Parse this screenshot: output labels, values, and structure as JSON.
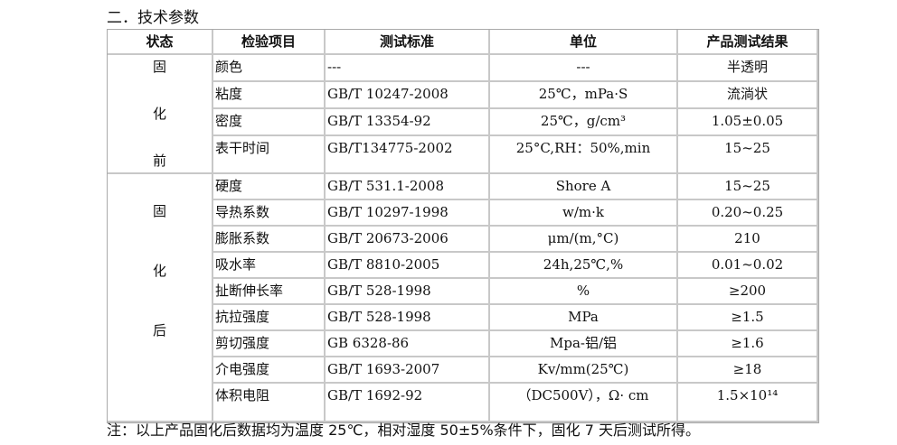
{
  "title": "二．技术参数",
  "headers": [
    "状态",
    "检验项目",
    "测试标准",
    "单位",
    "产品测试结果"
  ],
  "groups": [
    {
      "state": [
        "固",
        "化",
        "前"
      ],
      "rows": [
        {
          "item": "颜色",
          "standard": "---",
          "unit": "---",
          "result": "半透明"
        },
        {
          "item": "粘度",
          "standard": "GB/T 10247-2008",
          "unit": "25℃，mPa·S",
          "result": "流淌状"
        },
        {
          "item": "密度",
          "standard": "GB/T 13354-92",
          "unit": "25℃，g/cm³",
          "result": "1.05±0.05"
        },
        {
          "item": "表干时间",
          "standard": "GB/T134775-2002",
          "unit": "25°C,RH：50%,min",
          "result": "15~25"
        }
      ]
    },
    {
      "state": [
        "固",
        "化",
        "后"
      ],
      "rows": [
        {
          "item": "硬度",
          "standard": "GB/T 531.1-2008",
          "unit": "Shore A",
          "result": "15~25"
        },
        {
          "item": "导热系数",
          "standard": "GB/T 10297-1998",
          "unit": "w/m·k",
          "result": "0.20~0.25"
        },
        {
          "item": "膨胀系数",
          "standard": "GB/T 20673-2006",
          "unit": "μm/(m,°C)",
          "result": "210"
        },
        {
          "item": "吸水率",
          "standard": "GB/T 8810-2005",
          "unit": "24h,25℃,%",
          "result": "0.01~0.02"
        },
        {
          "item": "扯断伸长率",
          "standard": "GB/T 528-1998",
          "unit": "%",
          "result": "≥200"
        },
        {
          "item": "抗拉强度",
          "standard": "GB/T 528-1998",
          "unit": "MPa",
          "result": "≥1.5"
        },
        {
          "item": "剪切强度",
          "standard": "GB 6328-86",
          "unit": "Mpa-铝/铝",
          "result": "≥1.6"
        },
        {
          "item": "介电强度",
          "standard": "GB/T 1693-2007",
          "unit": "Kv/mm(25℃)",
          "result": "≥18"
        },
        {
          "item": "体积电阻",
          "standard": "GB/T 1692-92",
          "unit": "（DC500V），Ω·  cm",
          "result": "1.5×10¹⁴"
        }
      ]
    }
  ],
  "note": "注：以上产品固化后数据均为温度 25℃，相对湿度 50±5%条件下，固化 7 天后测试所得。"
}
